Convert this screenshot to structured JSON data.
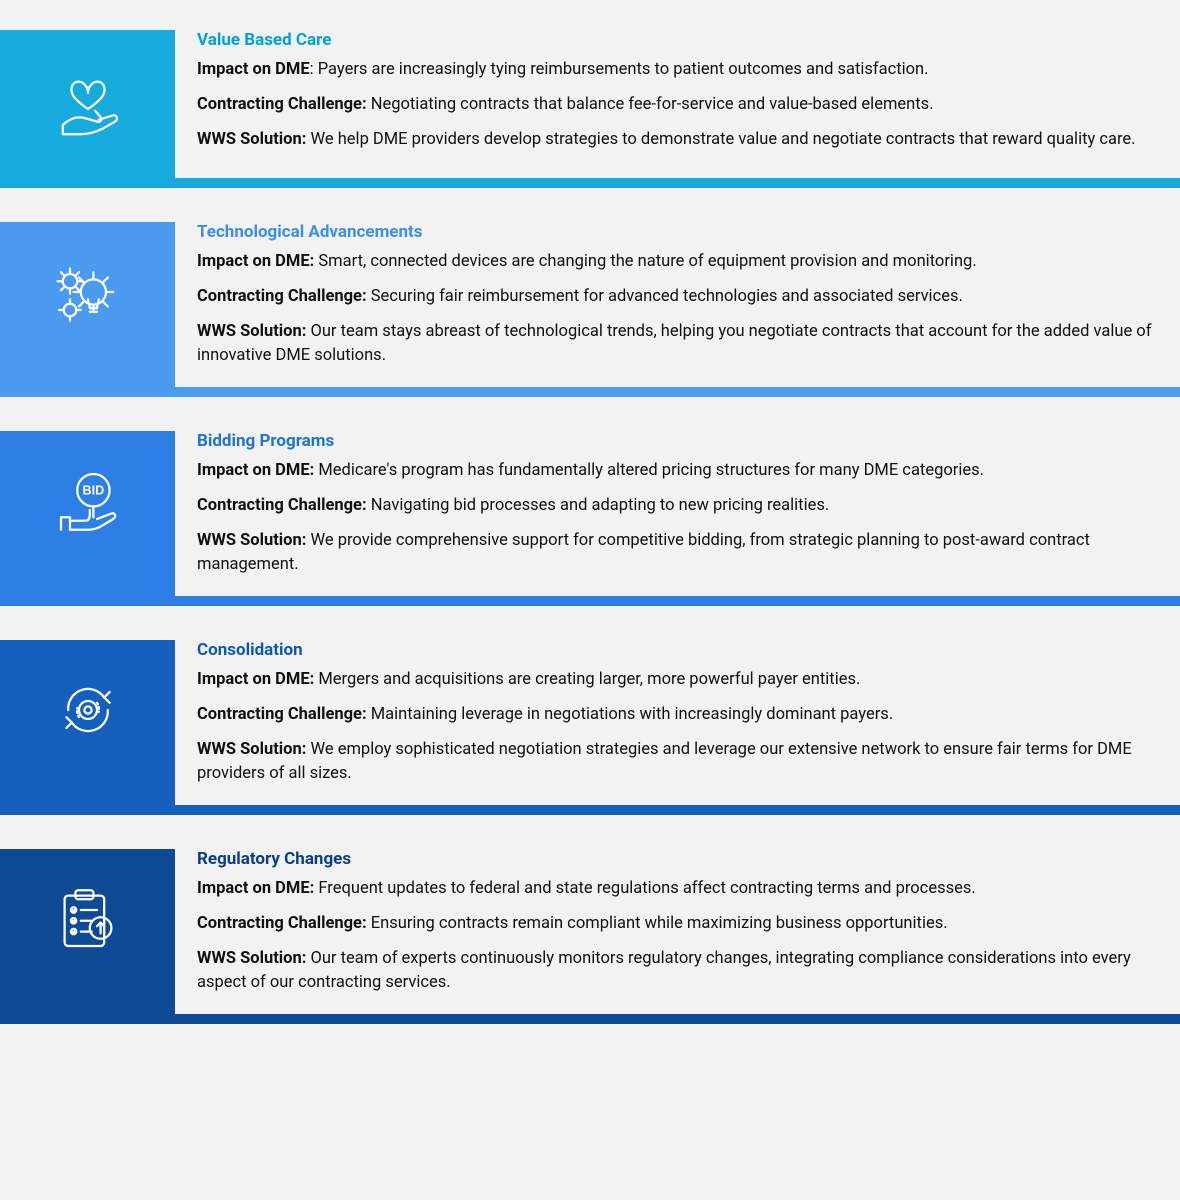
{
  "sections": [
    {
      "title": "Value Based Care",
      "title_color": "#00a3d7",
      "icon_bg": "#16aadd",
      "bar_color": "#16aadd",
      "impact_label": "Impact on DME",
      "impact_sep": ": ",
      "impact_text": "Payers are increasingly tying reimbursements to patient outcomes and satisfaction.",
      "challenge_label": "Contracting Challenge:",
      "challenge_text": " Negotiating contracts that balance fee-for-service and value-based elements.",
      "solution_label": "WWS Solution:",
      "solution_text": " We help DME providers develop strategies to demonstrate value and negotiate contracts that reward quality care.",
      "icon": "heart-hand"
    },
    {
      "title": "Technological Advancements",
      "title_color": "#3b8fe8",
      "icon_bg": "#4a9bf0",
      "bar_color": "#4a9bf0",
      "impact_label": "Impact on DME:",
      "impact_sep": " ",
      "impact_text": "Smart, connected devices are changing the nature of equipment provision and monitoring.",
      "challenge_label": "Contracting Challenge:",
      "challenge_text": " Securing fair reimbursement for advanced technologies and associated services.",
      "solution_label": "WWS Solution:",
      "solution_text": " Our team stays abreast of technological trends, helping you negotiate contracts that account for the added value of innovative DME solutions.",
      "icon": "gears-bulb"
    },
    {
      "title": "Bidding Programs",
      "title_color": "#1d73d6",
      "icon_bg": "#2d7fe6",
      "bar_color": "#2d7fe6",
      "impact_label": "Impact on DME:",
      "impact_sep": " ",
      "impact_text": "Medicare's program has fundamentally altered pricing structures for many DME categories.",
      "challenge_label": "Contracting Challenge:",
      "challenge_text": " Navigating bid processes and adapting to new pricing realities.",
      "solution_label": "WWS Solution:",
      "solution_text": " We provide comprehensive support for competitive bidding, from strategic planning to post-award contract management.",
      "icon": "bid-hand"
    },
    {
      "title": "Consolidation",
      "title_color": "#0e58b0",
      "icon_bg": "#1660bd",
      "bar_color": "#1660bd",
      "impact_label": "Impact on DME:",
      "impact_sep": " ",
      "impact_text": "Mergers and acquisitions are creating larger, more powerful payer entities.",
      "challenge_label": "Contracting Challenge:",
      "challenge_text": " Maintaining leverage in negotiations with increasingly dominant payers.",
      "solution_label": "WWS Solution:",
      "solution_text": " We employ sophisticated negotiation strategies and leverage our extensive network to ensure fair terms for DME providers of all sizes.",
      "icon": "cycle-gear"
    },
    {
      "title": "Regulatory Changes",
      "title_color": "#0a3f84",
      "icon_bg": "#0e4a96",
      "bar_color": "#0e4a96",
      "impact_label": "Impact on DME:",
      "impact_sep": " ",
      "impact_text": "Frequent updates to federal and state regulations affect contracting terms and processes.",
      "challenge_label": "Contracting Challenge:",
      "challenge_text": " Ensuring contracts remain compliant while maximizing business opportunities.",
      "solution_label": "WWS Solution:",
      "solution_text": " Our team of experts continuously monitors regulatory changes, integrating compliance considerations into every aspect of our contracting services.",
      "icon": "clipboard-up"
    }
  ]
}
